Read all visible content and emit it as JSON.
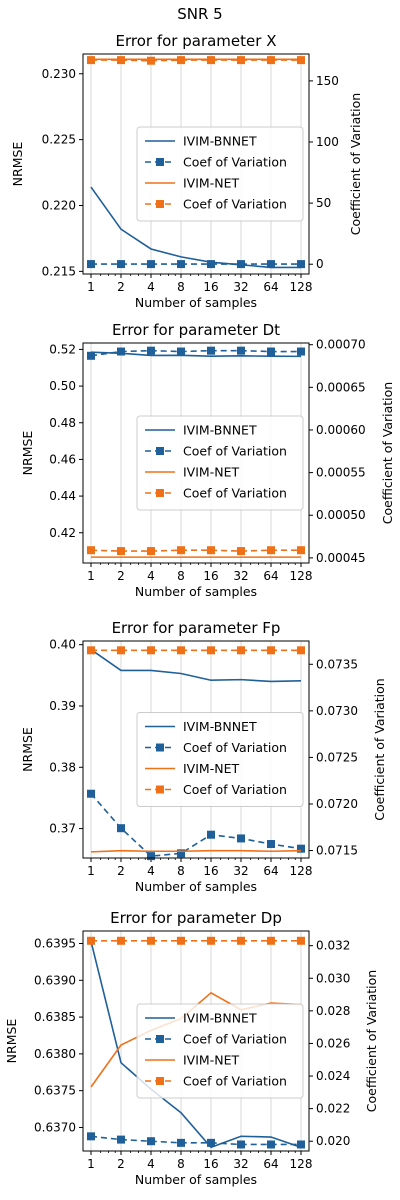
{
  "suptitle": "SNR 5",
  "colors": {
    "bnnet": "#1f5f9a",
    "net": "#f07018",
    "grid": "#d9d9d9",
    "axis": "#000000"
  },
  "chart_data": [
    {
      "type": "line",
      "title": "Error for parameter X",
      "xlabel": "Number of samples",
      "ylabel": "NRMSE",
      "y2label": "Coefficient of Variation",
      "x": [
        1,
        2,
        4,
        8,
        16,
        32,
        64,
        128
      ],
      "xscale": "log2",
      "ylim": [
        0.2148,
        0.2315
      ],
      "y2lim": [
        -8,
        172
      ],
      "yticks": [
        "0.215",
        "0.220",
        "0.225",
        "0.230"
      ],
      "y2ticks": [
        "0",
        "50",
        "100",
        "150"
      ],
      "grid": "vertical",
      "legend_location": "center-right",
      "series": [
        {
          "name": "IVIM-BNNET",
          "axis": "left",
          "style": "solid",
          "color": "bnnet",
          "values": [
            0.2214,
            0.2182,
            0.2167,
            0.2161,
            0.2157,
            0.2155,
            0.2153,
            0.2153
          ]
        },
        {
          "name": "Coef of Variation",
          "axis": "right",
          "style": "dashed",
          "marker": "square",
          "color": "bnnet",
          "values": [
            0.1,
            0.1,
            0.1,
            0.1,
            0.1,
            0.1,
            0.1,
            0.1
          ]
        },
        {
          "name": "IVIM-NET",
          "axis": "left",
          "style": "solid",
          "color": "net",
          "values": [
            0.2311,
            0.2311,
            0.2311,
            0.2311,
            0.2311,
            0.2311,
            0.2311,
            0.2311
          ]
        },
        {
          "name": "Coef of Variation",
          "axis": "right",
          "style": "dashed",
          "marker": "square",
          "color": "net",
          "values": [
            167,
            167,
            166.5,
            167,
            167,
            167,
            167,
            167
          ]
        }
      ]
    },
    {
      "type": "line",
      "title": "Error for parameter Dt",
      "xlabel": "Number of samples",
      "ylabel": "NRMSE",
      "y2label": "Coefficient of Variation",
      "x": [
        1,
        2,
        4,
        8,
        16,
        32,
        64,
        128
      ],
      "xscale": "log2",
      "ylim": [
        0.4035,
        0.5235
      ],
      "y2lim": [
        0.000444,
        0.000702
      ],
      "yticks": [
        "0.42",
        "0.44",
        "0.46",
        "0.48",
        "0.50",
        "0.52"
      ],
      "y2ticks": [
        "0.00045",
        "0.00050",
        "0.00055",
        "0.00060",
        "0.00065",
        "0.00070"
      ],
      "grid": "vertical",
      "legend_location": "center-right",
      "series": [
        {
          "name": "IVIM-BNNET",
          "axis": "left",
          "style": "solid",
          "color": "bnnet",
          "values": [
            0.5185,
            0.5179,
            0.5167,
            0.5168,
            0.5163,
            0.5165,
            0.5163,
            0.5162
          ]
        },
        {
          "name": "Coef of Variation",
          "axis": "right",
          "style": "dashed",
          "marker": "square",
          "color": "bnnet",
          "values": [
            0.000687,
            0.000692,
            0.000693,
            0.000692,
            0.000693,
            0.000693,
            0.000692,
            0.000692
          ]
        },
        {
          "name": "IVIM-NET",
          "axis": "left",
          "style": "solid",
          "color": "net",
          "values": [
            0.4067,
            0.4067,
            0.4067,
            0.4067,
            0.4067,
            0.4067,
            0.4067,
            0.4067
          ]
        },
        {
          "name": "Coef of Variation",
          "axis": "right",
          "style": "dashed",
          "marker": "square",
          "color": "net",
          "values": [
            0.000459,
            0.000458,
            0.000458,
            0.000459,
            0.000459,
            0.000458,
            0.000459,
            0.000459
          ]
        }
      ]
    },
    {
      "type": "line",
      "title": "Error for parameter Fp",
      "xlabel": "Number of samples",
      "ylabel": "NRMSE",
      "y2label": "Coefficient of Variation",
      "x": [
        1,
        2,
        4,
        8,
        16,
        32,
        64,
        128
      ],
      "xscale": "log2",
      "ylim": [
        0.3652,
        0.4006
      ],
      "y2lim": [
        0.07142,
        0.07375
      ],
      "yticks": [
        "0.37",
        "0.38",
        "0.39",
        "0.40"
      ],
      "y2ticks": [
        "0.0715",
        "0.0720",
        "0.0725",
        "0.0730",
        "0.0735"
      ],
      "grid": "vertical",
      "legend_location": "center-right",
      "series": [
        {
          "name": "IVIM-BNNET",
          "axis": "left",
          "style": "solid",
          "color": "bnnet",
          "values": [
            0.3992,
            0.3958,
            0.3958,
            0.3953,
            0.3942,
            0.3943,
            0.394,
            0.3941
          ]
        },
        {
          "name": "Coef of Variation",
          "axis": "right",
          "style": "dashed",
          "marker": "square",
          "color": "bnnet",
          "values": [
            0.07211,
            0.07174,
            0.07144,
            0.07147,
            0.07167,
            0.07163,
            0.07157,
            0.07152
          ]
        },
        {
          "name": "IVIM-NET",
          "axis": "left",
          "style": "solid",
          "color": "net",
          "values": [
            0.3662,
            0.3664,
            0.3663,
            0.3663,
            0.3664,
            0.3664,
            0.3663,
            0.3664
          ]
        },
        {
          "name": "Coef of Variation",
          "axis": "right",
          "style": "dashed",
          "marker": "square",
          "color": "net",
          "values": [
            0.07365,
            0.07365,
            0.07365,
            0.07365,
            0.07365,
            0.07365,
            0.07365,
            0.07365
          ]
        }
      ]
    },
    {
      "type": "line",
      "title": "Error for parameter Dp",
      "xlabel": "Number of samples",
      "ylabel": "NRMSE",
      "y2label": "Coefficient of Variation",
      "x": [
        1,
        2,
        4,
        8,
        16,
        32,
        64,
        128
      ],
      "xscale": "log2",
      "ylim": [
        0.63668,
        0.63967
      ],
      "y2lim": [
        0.0194,
        0.0329
      ],
      "yticks": [
        "0.6370",
        "0.6375",
        "0.6380",
        "0.6385",
        "0.6390",
        "0.6395"
      ],
      "y2ticks": [
        "0.020",
        "0.022",
        "0.024",
        "0.026",
        "0.028",
        "0.030",
        "0.032"
      ],
      "grid": "vertical",
      "legend_location": "center-right",
      "series": [
        {
          "name": "IVIM-BNNET",
          "axis": "left",
          "style": "solid",
          "color": "bnnet",
          "values": [
            0.63953,
            0.63788,
            0.63752,
            0.6372,
            0.63673,
            0.63688,
            0.63687,
            0.63673
          ]
        },
        {
          "name": "Coef of Variation",
          "axis": "right",
          "style": "dashed",
          "marker": "square",
          "color": "bnnet",
          "values": [
            0.0203,
            0.0201,
            0.02,
            0.0199,
            0.0199,
            0.0198,
            0.0198,
            0.0198
          ]
        },
        {
          "name": "IVIM-NET",
          "axis": "left",
          "style": "solid",
          "color": "net",
          "values": [
            0.63755,
            0.63812,
            0.63832,
            0.63848,
            0.63883,
            0.6386,
            0.63869,
            0.63867
          ]
        },
        {
          "name": "Coef of Variation",
          "axis": "right",
          "style": "dashed",
          "marker": "square",
          "color": "net",
          "values": [
            0.0323,
            0.0323,
            0.0323,
            0.0323,
            0.0323,
            0.0323,
            0.0323,
            0.0323
          ]
        }
      ]
    }
  ]
}
